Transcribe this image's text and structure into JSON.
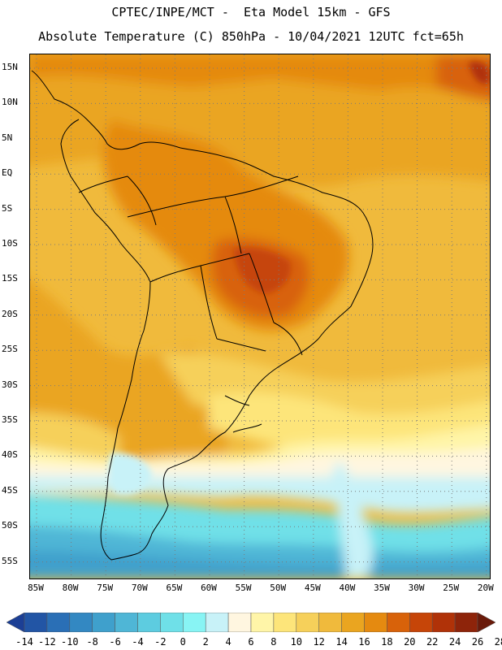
{
  "header": {
    "line1": "CPTEC/INPE/MCT -  Eta Model 15km - GFS",
    "line2": "Absolute Temperature (C) 850hPa - 10/04/2021 12UTC fct=65h"
  },
  "map": {
    "lat_labels": [
      "15N",
      "10N",
      "5N",
      "EQ",
      "5S",
      "10S",
      "15S",
      "20S",
      "25S",
      "30S",
      "35S",
      "40S",
      "45S",
      "50S",
      "55S"
    ],
    "lon_labels": [
      "85W",
      "80W",
      "75W",
      "70W",
      "65W",
      "60W",
      "55W",
      "50W",
      "45W",
      "40W",
      "35W",
      "30W",
      "25W",
      "20W"
    ],
    "region": "South America",
    "grid": "dotted"
  },
  "colorbar": {
    "labels": [
      "-14",
      "-12",
      "-10",
      "-8",
      "-6",
      "-4",
      "-2",
      "0",
      "2",
      "4",
      "6",
      "8",
      "10",
      "12",
      "14",
      "16",
      "18",
      "20",
      "22",
      "24",
      "26",
      "28"
    ],
    "colors": [
      "#1c3f95",
      "#2255a5",
      "#2a6fb6",
      "#3388c2",
      "#3fa0cc",
      "#4fb6d6",
      "#5dcce0",
      "#6fe0e8",
      "#88f4f4",
      "#c8f2f8",
      "#fff6e0",
      "#fff5a8",
      "#fde57a",
      "#f6d05a",
      "#f0ba3c",
      "#eaa520",
      "#e58a10",
      "#d8620a",
      "#c64508",
      "#b03208",
      "#8e240a",
      "#6a1a0a"
    ]
  }
}
